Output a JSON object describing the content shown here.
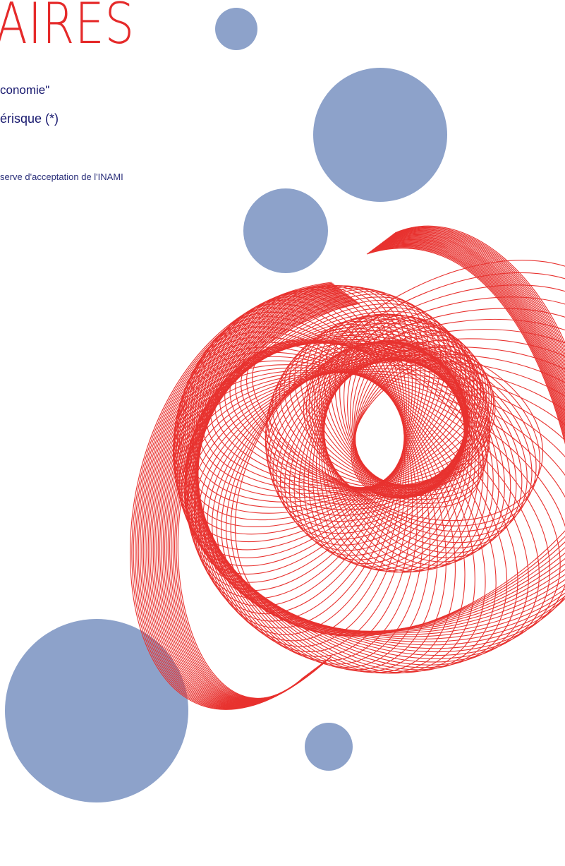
{
  "cover": {
    "title": "AIRES",
    "subtitle_line1": "conomie\"",
    "subtitle_line2": "érisque (*)",
    "footnote": "serve d'acceptation de l'INAMI"
  },
  "colors": {
    "spiral": "#e8322f",
    "circles": "#8da2ca",
    "title": "#e52a2a",
    "text": "#17186e"
  }
}
